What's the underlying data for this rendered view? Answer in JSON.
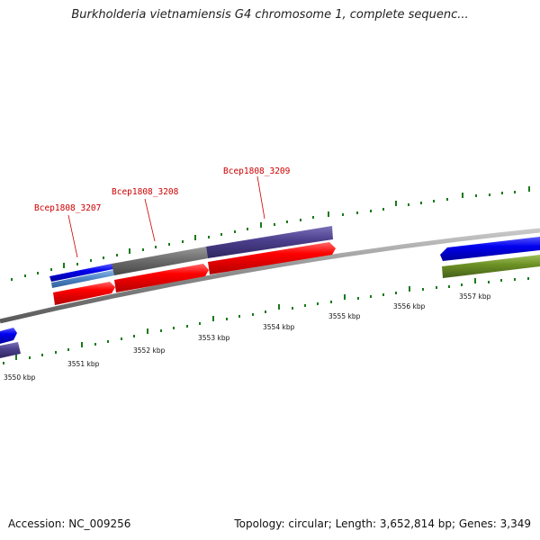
{
  "title": "Burkholderia vietnamiensis G4 chromosome 1, complete sequenc...",
  "footer": {
    "accession": "Accession: NC_009256",
    "summary": "Topology: circular; Length: 3,652,814 bp; Genes: 3,349"
  },
  "scale_labels": [
    "3550 kbp",
    "3551 kbp",
    "3552 kbp",
    "3553 kbp",
    "3554 kbp",
    "3555 kbp",
    "3556 kbp",
    "3557 kbp"
  ],
  "gene_labels": [
    "Bcep1808_3207",
    "Bcep1808_3208",
    "Bcep1808_3209"
  ],
  "colors": {
    "backbone": "#888888",
    "tick": "#1a7a1a",
    "red_gene": "#ff0000",
    "blue_gene": "#0000ee",
    "purple_gene": "#4b3f8c",
    "gray_gene": "#6e6e6e",
    "light_blue_gene": "#4f86c6",
    "olive_gene": "#6b8e23",
    "label": "#cc0000"
  }
}
